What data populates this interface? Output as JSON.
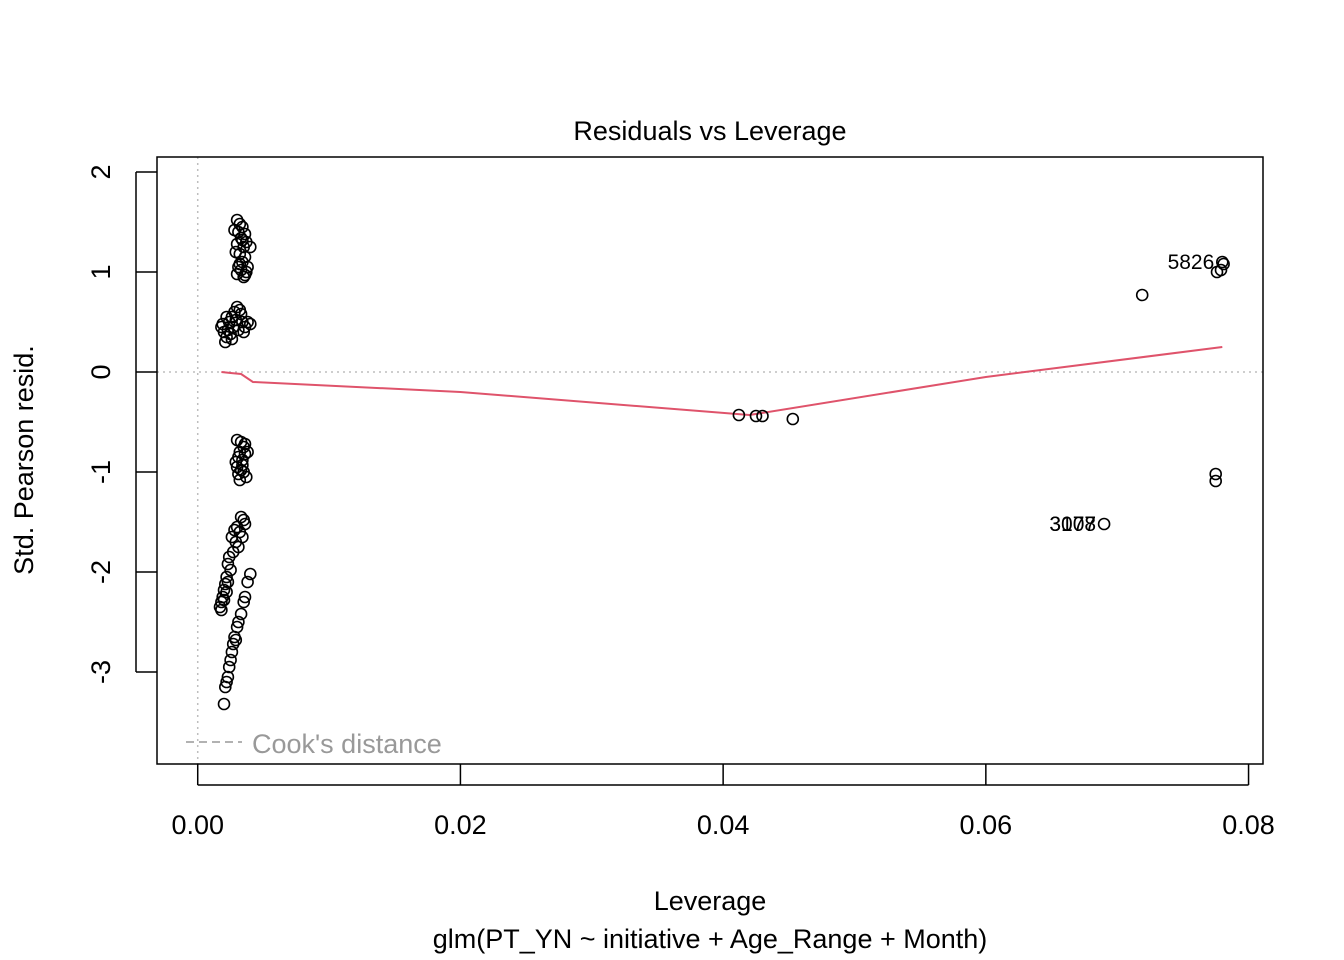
{
  "chart_data": {
    "type": "scatter",
    "title": "Residuals vs Leverage",
    "xlabel": "Leverage",
    "subtitle": "glm(PT_YN ~ initiative + Age_Range + Month)",
    "ylabel": "Std. Pearson resid.",
    "xlim": [
      -0.0031,
      0.0811
    ],
    "ylim": [
      -3.92,
      2.15
    ],
    "x_ticks": [
      0.0,
      0.02,
      0.04,
      0.06,
      0.08
    ],
    "x_tick_labels": [
      "0.00",
      "0.02",
      "0.04",
      "0.06",
      "0.08"
    ],
    "y_ticks": [
      -3,
      -2,
      -1,
      0,
      1,
      2
    ],
    "y_tick_labels": [
      "-3",
      "-2",
      "-1",
      "0",
      "1",
      "2"
    ],
    "grid": false,
    "reference_lines": {
      "h": 0,
      "v": 0,
      "style": "dotted",
      "color": "#bebebe"
    },
    "legend": {
      "label": "Cook's distance",
      "placement": "bottom-left",
      "line_style": "dashed",
      "color": "#999999"
    },
    "point_color": "#000000",
    "smooth_color": "#DF536B",
    "points": [
      {
        "x": 0.003,
        "y": 1.52
      },
      {
        "x": 0.0032,
        "y": 1.48
      },
      {
        "x": 0.0034,
        "y": 1.45
      },
      {
        "x": 0.0031,
        "y": 1.4
      },
      {
        "x": 0.0036,
        "y": 1.38
      },
      {
        "x": 0.0028,
        "y": 1.42
      },
      {
        "x": 0.0033,
        "y": 1.34
      },
      {
        "x": 0.0037,
        "y": 1.3
      },
      {
        "x": 0.003,
        "y": 1.28
      },
      {
        "x": 0.0035,
        "y": 1.25
      },
      {
        "x": 0.004,
        "y": 1.25
      },
      {
        "x": 0.0029,
        "y": 1.2
      },
      {
        "x": 0.0032,
        "y": 1.18
      },
      {
        "x": 0.0036,
        "y": 1.15
      },
      {
        "x": 0.0034,
        "y": 1.1
      },
      {
        "x": 0.0031,
        "y": 1.05
      },
      {
        "x": 0.0033,
        "y": 1.02
      },
      {
        "x": 0.0037,
        "y": 1.0
      },
      {
        "x": 0.003,
        "y": 0.98
      },
      {
        "x": 0.0035,
        "y": 0.95
      },
      {
        "x": 0.0038,
        "y": 1.05
      },
      {
        "x": 0.0034,
        "y": 1.32
      },
      {
        "x": 0.0032,
        "y": 1.08
      },
      {
        "x": 0.0036,
        "y": 0.97
      },
      {
        "x": 0.0018,
        "y": 0.45
      },
      {
        "x": 0.002,
        "y": 0.4
      },
      {
        "x": 0.0022,
        "y": 0.35
      },
      {
        "x": 0.0021,
        "y": 0.3
      },
      {
        "x": 0.0024,
        "y": 0.5
      },
      {
        "x": 0.0026,
        "y": 0.55
      },
      {
        "x": 0.0028,
        "y": 0.6
      },
      {
        "x": 0.003,
        "y": 0.65
      },
      {
        "x": 0.0032,
        "y": 0.62
      },
      {
        "x": 0.0034,
        "y": 0.5
      },
      {
        "x": 0.0036,
        "y": 0.45
      },
      {
        "x": 0.0038,
        "y": 0.5
      },
      {
        "x": 0.004,
        "y": 0.48
      },
      {
        "x": 0.0023,
        "y": 0.42
      },
      {
        "x": 0.0025,
        "y": 0.38
      },
      {
        "x": 0.0027,
        "y": 0.45
      },
      {
        "x": 0.0029,
        "y": 0.52
      },
      {
        "x": 0.0031,
        "y": 0.42
      },
      {
        "x": 0.0033,
        "y": 0.58
      },
      {
        "x": 0.0035,
        "y": 0.4
      },
      {
        "x": 0.0019,
        "y": 0.48
      },
      {
        "x": 0.0022,
        "y": 0.55
      },
      {
        "x": 0.0026,
        "y": 0.33
      },
      {
        "x": 0.003,
        "y": -0.68
      },
      {
        "x": 0.0033,
        "y": -0.7
      },
      {
        "x": 0.0035,
        "y": -0.75
      },
      {
        "x": 0.0032,
        "y": -0.8
      },
      {
        "x": 0.0036,
        "y": -0.82
      },
      {
        "x": 0.0031,
        "y": -0.85
      },
      {
        "x": 0.0034,
        "y": -0.88
      },
      {
        "x": 0.0038,
        "y": -0.8
      },
      {
        "x": 0.003,
        "y": -0.95
      },
      {
        "x": 0.0033,
        "y": -0.98
      },
      {
        "x": 0.0035,
        "y": -1.0
      },
      {
        "x": 0.0037,
        "y": -1.05
      },
      {
        "x": 0.0032,
        "y": -1.08
      },
      {
        "x": 0.0029,
        "y": -0.9
      },
      {
        "x": 0.0036,
        "y": -0.72
      },
      {
        "x": 0.0034,
        "y": -0.93
      },
      {
        "x": 0.0031,
        "y": -1.02
      },
      {
        "x": 0.0033,
        "y": -1.45
      },
      {
        "x": 0.0035,
        "y": -1.48
      },
      {
        "x": 0.003,
        "y": -1.55
      },
      {
        "x": 0.0032,
        "y": -1.6
      },
      {
        "x": 0.0028,
        "y": -1.58
      },
      {
        "x": 0.0026,
        "y": -1.65
      },
      {
        "x": 0.0029,
        "y": -1.7
      },
      {
        "x": 0.0031,
        "y": -1.75
      },
      {
        "x": 0.0027,
        "y": -1.8
      },
      {
        "x": 0.0024,
        "y": -1.85
      },
      {
        "x": 0.0023,
        "y": -1.92
      },
      {
        "x": 0.0025,
        "y": -1.98
      },
      {
        "x": 0.0022,
        "y": -2.05
      },
      {
        "x": 0.0021,
        "y": -2.12
      },
      {
        "x": 0.002,
        "y": -2.18
      },
      {
        "x": 0.0019,
        "y": -2.25
      },
      {
        "x": 0.0018,
        "y": -2.3
      },
      {
        "x": 0.0017,
        "y": -2.35
      },
      {
        "x": 0.0018,
        "y": -2.38
      },
      {
        "x": 0.002,
        "y": -2.28
      },
      {
        "x": 0.0022,
        "y": -2.2
      },
      {
        "x": 0.0023,
        "y": -2.1
      },
      {
        "x": 0.0034,
        "y": -1.65
      },
      {
        "x": 0.0036,
        "y": -1.52
      },
      {
        "x": 0.004,
        "y": -2.02
      },
      {
        "x": 0.0038,
        "y": -2.1
      },
      {
        "x": 0.0036,
        "y": -2.25
      },
      {
        "x": 0.0035,
        "y": -2.3
      },
      {
        "x": 0.0033,
        "y": -2.42
      },
      {
        "x": 0.0031,
        "y": -2.5
      },
      {
        "x": 0.003,
        "y": -2.55
      },
      {
        "x": 0.0028,
        "y": -2.65
      },
      {
        "x": 0.0027,
        "y": -2.72
      },
      {
        "x": 0.0026,
        "y": -2.8
      },
      {
        "x": 0.0025,
        "y": -2.88
      },
      {
        "x": 0.0024,
        "y": -2.95
      },
      {
        "x": 0.0023,
        "y": -3.05
      },
      {
        "x": 0.0022,
        "y": -3.1
      },
      {
        "x": 0.0021,
        "y": -3.15
      },
      {
        "x": 0.002,
        "y": -3.32
      },
      {
        "x": 0.0029,
        "y": -2.68
      },
      {
        "x": 0.0412,
        "y": -0.43
      },
      {
        "x": 0.0425,
        "y": -0.44
      },
      {
        "x": 0.043,
        "y": -0.44
      },
      {
        "x": 0.0453,
        "y": -0.47
      },
      {
        "x": 0.0719,
        "y": 0.77
      },
      {
        "x": 0.0776,
        "y": 1.0
      },
      {
        "x": 0.0779,
        "y": 1.02
      },
      {
        "x": 0.078,
        "y": 1.1
      },
      {
        "x": 0.0781,
        "y": 1.08
      },
      {
        "x": 0.0775,
        "y": -1.02
      },
      {
        "x": 0.0775,
        "y": -1.09
      },
      {
        "x": 0.069,
        "y": -1.52
      }
    ],
    "smooth_line": [
      {
        "x": 0.0018,
        "y": 0.0
      },
      {
        "x": 0.0025,
        "y": -0.01
      },
      {
        "x": 0.0033,
        "y": -0.02
      },
      {
        "x": 0.0042,
        "y": -0.1
      },
      {
        "x": 0.02,
        "y": -0.2
      },
      {
        "x": 0.042,
        "y": -0.43
      },
      {
        "x": 0.06,
        "y": -0.05
      },
      {
        "x": 0.078,
        "y": 0.25
      }
    ],
    "point_labels": [
      {
        "label": "5826",
        "x": 0.078,
        "y": 1.1,
        "anchor": "end"
      },
      {
        "label": "3077",
        "x": 0.069,
        "y": -1.52,
        "anchor": "end"
      },
      {
        "label": "3108",
        "x": 0.069,
        "y": -1.52,
        "anchor": "end"
      }
    ]
  }
}
